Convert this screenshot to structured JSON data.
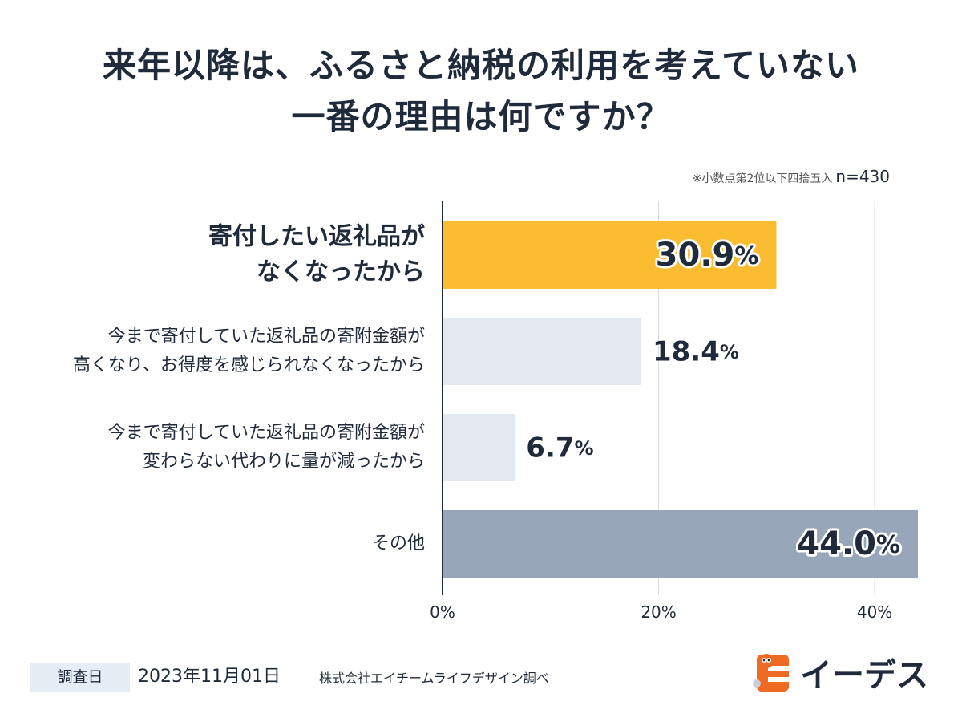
{
  "title": {
    "line1": "来年以降は、ふるさと納税の利用を考えていない",
    "line2": "一番の理由は何ですか？"
  },
  "note": {
    "rounding": "※小数点第2位以下四捨五入",
    "sample": "n=430"
  },
  "chart_data": {
    "type": "bar",
    "orientation": "horizontal",
    "title": "来年以降は、ふるさと納税の利用を考えていない一番の理由は何ですか？",
    "categories": [
      [
        "寄付したい返礼品が",
        "なくなったから"
      ],
      [
        "今まで寄付していた返礼品の寄附金額が",
        "高くなり、お得度を感じられなくなったから"
      ],
      [
        "今まで寄付していた返礼品の寄附金額が",
        "変わらない代わりに量が減ったから"
      ],
      [
        "その他"
      ]
    ],
    "values": [
      30.9,
      18.4,
      6.7,
      44.0
    ],
    "value_labels": [
      "30.9",
      "18.4",
      "6.7",
      "44.0"
    ],
    "unit": "%",
    "xlim": [
      0,
      44
    ],
    "xticks": [
      0,
      20,
      40
    ],
    "xtick_labels": [
      "0%",
      "20%",
      "40%"
    ],
    "grid": true,
    "bar_colors": [
      "#fbbc32",
      "#e3e8ef",
      "#e3e8ef",
      "#97a6b8"
    ],
    "highlight_index": 0
  },
  "footer": {
    "survey_label": "調査日",
    "date": "2023年11月01日",
    "source": "株式会社エイチームライフデザイン調べ"
  },
  "logo": {
    "text": "イーデス",
    "colors": {
      "brand": "#ef6a22",
      "text": "#1f2a3a"
    }
  }
}
